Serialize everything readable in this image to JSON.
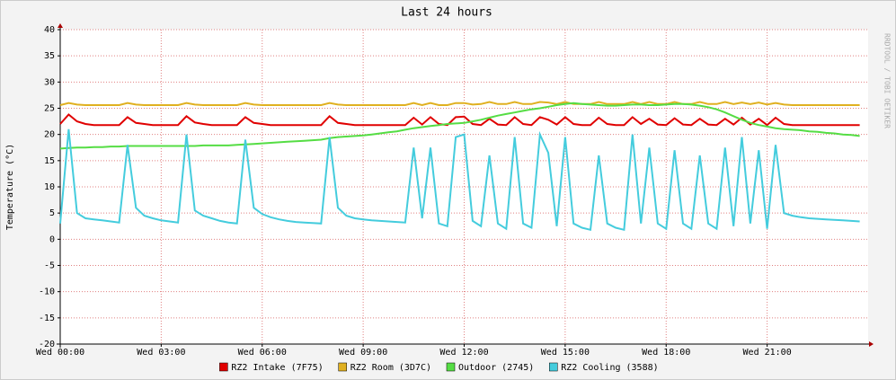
{
  "chart_data": {
    "type": "line",
    "title": "Last 24 hours",
    "y_label": "Temperature (°C)",
    "watermark": "RRDTOOL / TOBI OETIKER",
    "x": [
      0,
      0.25,
      0.5,
      0.75,
      1,
      1.25,
      1.5,
      1.75,
      2,
      2.25,
      2.5,
      2.75,
      3,
      3.25,
      3.5,
      3.75,
      4,
      4.25,
      4.5,
      4.75,
      5,
      5.25,
      5.5,
      5.75,
      6,
      6.25,
      6.5,
      6.75,
      7,
      7.25,
      7.5,
      7.75,
      8,
      8.25,
      8.5,
      8.75,
      9,
      9.25,
      9.5,
      9.75,
      10,
      10.25,
      10.5,
      10.75,
      11,
      11.25,
      11.5,
      11.75,
      12,
      12.25,
      12.5,
      12.75,
      13,
      13.25,
      13.5,
      13.75,
      14,
      14.25,
      14.5,
      14.75,
      15,
      15.25,
      15.5,
      15.75,
      16,
      16.25,
      16.5,
      16.75,
      17,
      17.25,
      17.5,
      17.75,
      18,
      18.25,
      18.5,
      18.75,
      19,
      19.25,
      19.5,
      19.75,
      20,
      20.25,
      20.5,
      20.75,
      21,
      21.25,
      21.5,
      21.75,
      22,
      22.25,
      22.5,
      22.75,
      23,
      23.25,
      23.5,
      23.75
    ],
    "series": [
      {
        "name": "RZ2 Intake (7F75)",
        "color": "#e00000",
        "values": [
          22,
          23.8,
          22.5,
          22,
          21.8,
          21.8,
          21.8,
          21.8,
          23.3,
          22.2,
          22,
          21.8,
          21.8,
          21.8,
          21.8,
          23.5,
          22.3,
          22,
          21.8,
          21.8,
          21.8,
          21.8,
          23.3,
          22.2,
          22,
          21.8,
          21.8,
          21.8,
          21.8,
          21.8,
          21.8,
          21.8,
          23.5,
          22.2,
          22,
          21.8,
          21.8,
          21.8,
          21.8,
          21.8,
          21.8,
          21.8,
          23.2,
          21.9,
          23.3,
          22,
          21.8,
          23.3,
          23.4,
          22,
          21.8,
          23,
          21.9,
          21.8,
          23.3,
          22,
          21.8,
          23.3,
          22.8,
          21.9,
          23.3,
          22,
          21.8,
          21.8,
          23.2,
          22,
          21.8,
          21.8,
          23.3,
          22,
          23,
          21.9,
          21.8,
          23.1,
          21.9,
          21.8,
          23,
          21.9,
          21.8,
          23,
          21.9,
          23.2,
          21.9,
          23,
          21.8,
          23.2,
          22,
          21.8,
          21.8,
          21.8,
          21.8,
          21.8,
          21.8,
          21.8,
          21.8,
          21.8
        ]
      },
      {
        "name": "RZ2 Room (3D7C)",
        "color": "#e0b020",
        "values": [
          25.6,
          26,
          25.7,
          25.6,
          25.6,
          25.6,
          25.6,
          25.6,
          26,
          25.7,
          25.6,
          25.6,
          25.6,
          25.6,
          25.6,
          26,
          25.7,
          25.6,
          25.6,
          25.6,
          25.6,
          25.6,
          26,
          25.7,
          25.6,
          25.6,
          25.6,
          25.6,
          25.6,
          25.6,
          25.6,
          25.6,
          26,
          25.7,
          25.6,
          25.6,
          25.6,
          25.6,
          25.6,
          25.6,
          25.6,
          25.6,
          26,
          25.6,
          26,
          25.6,
          25.6,
          26,
          26,
          25.7,
          25.8,
          26.2,
          25.8,
          25.8,
          26.2,
          25.8,
          25.8,
          26.2,
          26.1,
          25.8,
          26.2,
          25.8,
          25.8,
          25.8,
          26.2,
          25.8,
          25.8,
          25.8,
          26.2,
          25.8,
          26.2,
          25.8,
          25.8,
          26.2,
          25.8,
          25.8,
          26.2,
          25.8,
          25.8,
          26.2,
          25.8,
          26.1,
          25.8,
          26.1,
          25.7,
          26,
          25.7,
          25.6,
          25.6,
          25.6,
          25.6,
          25.6,
          25.6,
          25.6,
          25.6,
          25.6
        ]
      },
      {
        "name": "Outdoor (2745)",
        "color": "#55dd44",
        "values": [
          17.3,
          17.4,
          17.5,
          17.5,
          17.6,
          17.6,
          17.7,
          17.7,
          17.8,
          17.8,
          17.8,
          17.8,
          17.8,
          17.8,
          17.8,
          17.8,
          17.8,
          17.9,
          17.9,
          17.9,
          17.9,
          18,
          18.1,
          18.2,
          18.3,
          18.4,
          18.5,
          18.6,
          18.7,
          18.8,
          18.9,
          19,
          19.3,
          19.5,
          19.6,
          19.7,
          19.8,
          20,
          20.2,
          20.4,
          20.6,
          20.9,
          21.2,
          21.4,
          21.6,
          21.8,
          22,
          22.1,
          22.2,
          22.5,
          22.8,
          23.2,
          23.6,
          23.9,
          24.2,
          24.5,
          24.8,
          25,
          25.3,
          25.6,
          25.8,
          26,
          25.8,
          25.7,
          25.6,
          25.5,
          25.5,
          25.6,
          25.7,
          25.7,
          25.6,
          25.6,
          25.7,
          25.8,
          25.8,
          25.7,
          25.5,
          25.2,
          24.8,
          24.2,
          23.5,
          22.8,
          22.2,
          21.8,
          21.5,
          21.2,
          21,
          20.9,
          20.8,
          20.6,
          20.5,
          20.3,
          20.2,
          20,
          19.9,
          19.7
        ]
      },
      {
        "name": "RZ2 Cooling (3588)",
        "color": "#44ccdd",
        "values": [
          3,
          21,
          5,
          4,
          3.8,
          3.6,
          3.4,
          3.2,
          18,
          6,
          4.5,
          4,
          3.6,
          3.4,
          3.2,
          20,
          5.5,
          4.5,
          4,
          3.5,
          3.2,
          3,
          19,
          6,
          4.8,
          4.2,
          3.8,
          3.5,
          3.3,
          3.2,
          3.1,
          3,
          19.5,
          6,
          4.5,
          4,
          3.8,
          3.6,
          3.5,
          3.4,
          3.3,
          3.2,
          17.5,
          4,
          17.5,
          3,
          2.5,
          19.5,
          20,
          3.5,
          2.5,
          16,
          3,
          2,
          19.5,
          3,
          2.2,
          20,
          16.5,
          2.5,
          19.5,
          3,
          2.2,
          1.8,
          16,
          3,
          2.2,
          1.8,
          20,
          3,
          17.5,
          3,
          2,
          17,
          3,
          2,
          16,
          3,
          2,
          17.5,
          2.5,
          19.5,
          3,
          17,
          2,
          18,
          5,
          4.5,
          4.2,
          4,
          3.9,
          3.8,
          3.7,
          3.6,
          3.5,
          3.4
        ]
      }
    ],
    "xlim": [
      0,
      24
    ],
    "ylim": [
      -20,
      40
    ],
    "xticks": [
      {
        "value": 0,
        "label": "Wed 00:00"
      },
      {
        "value": 3,
        "label": "Wed 03:00"
      },
      {
        "value": 6,
        "label": "Wed 06:00"
      },
      {
        "value": 9,
        "label": "Wed 09:00"
      },
      {
        "value": 12,
        "label": "Wed 12:00"
      },
      {
        "value": 15,
        "label": "Wed 15:00"
      },
      {
        "value": 18,
        "label": "Wed 18:00"
      },
      {
        "value": 21,
        "label": "Wed 21:00"
      }
    ],
    "yticks": [
      -20,
      -15,
      -10,
      -5,
      0,
      5,
      10,
      15,
      20,
      25,
      30,
      35,
      40
    ],
    "grid": true,
    "legend": "bottom"
  }
}
